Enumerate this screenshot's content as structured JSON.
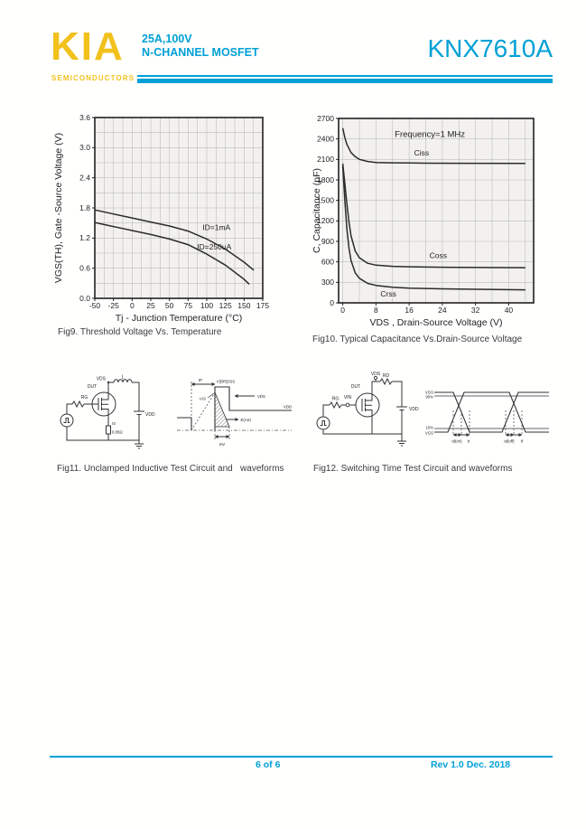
{
  "header": {
    "logo_text": "KIA",
    "logo_sub": "SEMICONDUCTORS",
    "rating": "25A,100V",
    "device_type": "N-CHANNEL MOSFET",
    "part_number": "KNX7610A",
    "accent_color": "#00a0d6",
    "logo_color": "#f2c11c"
  },
  "chart_data": [
    {
      "type": "line",
      "caption": "Fig9. Threshold Voltage Vs. Temperature",
      "xlabel": "Tj - Junction Temperature (°C)",
      "ylabel": "VGS(TH), Gate -Source Voltage (V)",
      "xlim": [
        -50,
        175
      ],
      "ylim": [
        0,
        3.6
      ],
      "x_grid_step": 12.5,
      "y_grid_step": 0.3,
      "plot_bg": "#f2f1ee",
      "xticks": [
        "-50",
        "-25",
        "0",
        "25",
        "50",
        "75",
        "100",
        "125",
        "150",
        "175"
      ],
      "yticks": [
        "0.0",
        "0.6",
        "1.2",
        "1.8",
        "2.4",
        "3.0",
        "3.6"
      ],
      "series": [
        {
          "name": "ID=1mA",
          "x": [
            -50,
            -25,
            0,
            25,
            50,
            75,
            100,
            125,
            150,
            163
          ],
          "y": [
            1.76,
            1.68,
            1.6,
            1.52,
            1.44,
            1.34,
            1.18,
            0.98,
            0.72,
            0.56
          ]
        },
        {
          "name": "ID=250uA",
          "x": [
            -50,
            -25,
            0,
            25,
            50,
            75,
            100,
            125,
            150,
            157
          ],
          "y": [
            1.51,
            1.43,
            1.35,
            1.27,
            1.18,
            1.07,
            0.88,
            0.66,
            0.38,
            0.28
          ]
        }
      ],
      "labels": [
        {
          "text": "ID=1mA",
          "x": 113,
          "y": 1.36
        },
        {
          "text": "ID=250uA",
          "x": 110,
          "y": 0.97
        }
      ]
    },
    {
      "type": "line",
      "caption": "Fig10. Typical Capacitance Vs.Drain-Source Voltage",
      "xlabel": "VDS , Drain-Source Voltage (V)",
      "ylabel": "C, Capacitance (pF)",
      "xlim": [
        -1,
        46
      ],
      "ylim": [
        0,
        2700
      ],
      "x_grid_step": 4,
      "y_grid_step": 300,
      "plot_bg": "#f2f1ee",
      "xticks": [
        "0",
        "8",
        "16",
        "24",
        "32",
        "40"
      ],
      "yticks": [
        "0",
        "300",
        "600",
        "900",
        "1200",
        "1500",
        "1800",
        "2100",
        "2400",
        "2700"
      ],
      "annotation": {
        "text": "Frequency=1 MHz",
        "x": 21,
        "y": 2430
      },
      "series": [
        {
          "name": "Ciss",
          "x": [
            0,
            0.5,
            1,
            2,
            3,
            4,
            6,
            8,
            12,
            16,
            20,
            44
          ],
          "y": [
            2560,
            2420,
            2320,
            2200,
            2140,
            2100,
            2070,
            2055,
            2050,
            2048,
            2045,
            2042
          ]
        },
        {
          "name": "Coss",
          "x": [
            0,
            0.5,
            1,
            1.5,
            2,
            3,
            4,
            6,
            8,
            12,
            16,
            24,
            44
          ],
          "y": [
            2040,
            1750,
            1450,
            1180,
            980,
            760,
            660,
            580,
            552,
            535,
            528,
            522,
            515
          ]
        },
        {
          "name": "Crss",
          "x": [
            0,
            0.5,
            1,
            1.5,
            2,
            3,
            4,
            6,
            8,
            12,
            16,
            24,
            44
          ],
          "y": [
            2000,
            1500,
            1080,
            800,
            620,
            440,
            360,
            285,
            255,
            228,
            215,
            205,
            190
          ]
        }
      ],
      "labels": [
        {
          "text": "Ciss",
          "x": 19,
          "y": 2160
        },
        {
          "text": "Coss",
          "x": 23,
          "y": 655
        },
        {
          "text": "Crss",
          "x": 11,
          "y": 90
        }
      ]
    }
  ],
  "figures": {
    "fig11_caption": "Fig11. Unclamped Inductive Test Circuit and   waveforms",
    "fig12_caption": "Fig12. Switching Time Test Circuit and waveforms"
  },
  "circuit11": {
    "labels": {
      "dut": "DUT",
      "rg": "RG",
      "vds": "VDS",
      "l": "L",
      "vdd": "VDD",
      "is": "IS",
      "rsense": "0.05Ω"
    }
  },
  "waveform11": {
    "labels": {
      "tp": "tP",
      "vbr": "V(BR)DSS",
      "ias": "IAS",
      "vds": "VDS",
      "vdd": "VDD",
      "eas": "E(AS)",
      "tav": "tAV"
    }
  },
  "circuit12": {
    "labels": {
      "dut": "DUT",
      "rg": "RG",
      "vin": "VIN",
      "vds": "VDS",
      "rd": "RD",
      "vdd": "VDD"
    }
  },
  "waveform12": {
    "labels": {
      "vgs_top": "VGS",
      "p90": "90%",
      "p10": "10%",
      "vgs_bot": "VGS",
      "td_on": "td(on)",
      "tr": "tr",
      "td_off": "td(off)",
      "tf": "tf"
    }
  },
  "footer": {
    "page_info": "6 of 6",
    "revision": "Rev 1.0 Dec. 2018"
  }
}
